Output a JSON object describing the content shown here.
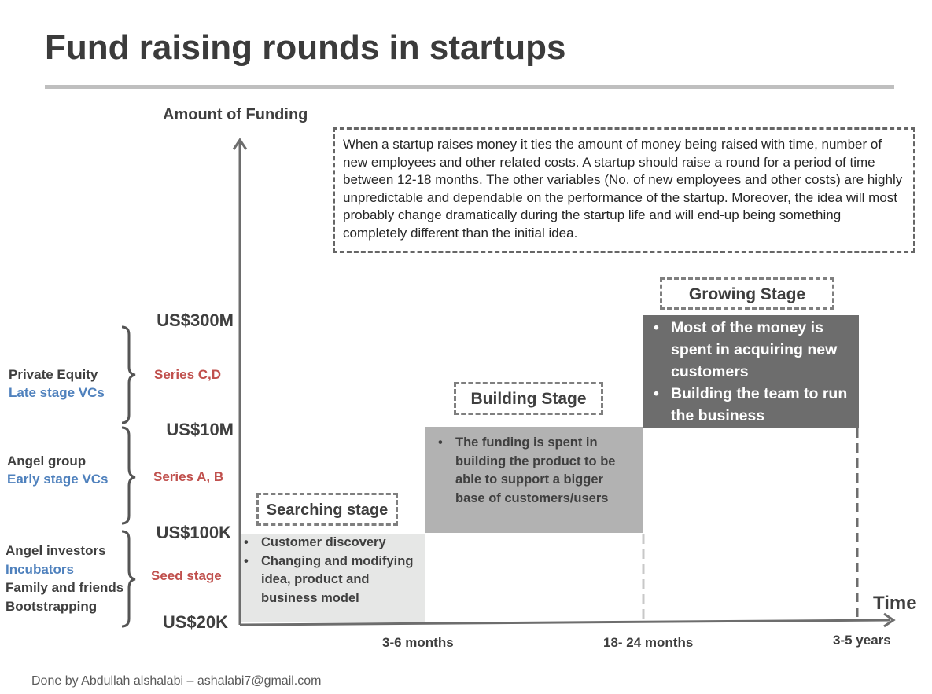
{
  "title": "Fund raising rounds in startups",
  "y_axis_label": "Amount of Funding",
  "x_axis_label": "Time",
  "note": "When a startup raises money it ties the amount of money being raised with time, number of new employees and other related costs. A startup should raise a round for a period of time between 12-18 months. The other variables (No. of new employees and other costs) are highly unpredictable and dependable on the performance of the startup. Moreover,  the idea will most probably change dramatically during the startup life and will end-up being something completely different than the initial idea.",
  "funding_levels": [
    "US$300M",
    "US$10M",
    "US$100K",
    "US$20K"
  ],
  "rounds": [
    {
      "series": "Series C,D",
      "investors": [
        {
          "text": "Private Equity",
          "style": "dark"
        },
        {
          "text": "Late stage VCs",
          "style": "blue"
        }
      ]
    },
    {
      "series": "Series A, B",
      "investors": [
        {
          "text": "Angel group",
          "style": "dark"
        },
        {
          "text": "Early stage VCs",
          "style": "blue"
        }
      ]
    },
    {
      "series": "Seed stage",
      "investors": [
        {
          "text": "Angel investors",
          "style": "dark"
        },
        {
          "text": "Incubators",
          "style": "blue"
        },
        {
          "text": "Family and friends",
          "style": "dark"
        },
        {
          "text": "Bootstrapping",
          "style": "dark"
        }
      ]
    }
  ],
  "stages": [
    {
      "name": "Searching stage",
      "bullets": [
        "Customer discovery",
        "Changing and modifying idea, product and business model"
      ]
    },
    {
      "name": "Building Stage",
      "bullets": [
        "The funding is spent in building the product to be able to support a bigger base of customers/users"
      ]
    },
    {
      "name": "Growing Stage",
      "bullets": [
        "Most of the money is spent in acquiring new customers",
        "Building the team to run the business"
      ]
    }
  ],
  "time_ticks": [
    "3-6 months",
    "18- 24 months",
    "3-5 years"
  ],
  "colors": {
    "searching": "#e6e7e6",
    "building": "#b2b2b2",
    "growing": "#6d6d6d",
    "series_text": "#c0504d",
    "investor_blue": "#4f81bd"
  },
  "footer": "Done by Abdullah alshalabi – ashalabi7@gmail.com"
}
